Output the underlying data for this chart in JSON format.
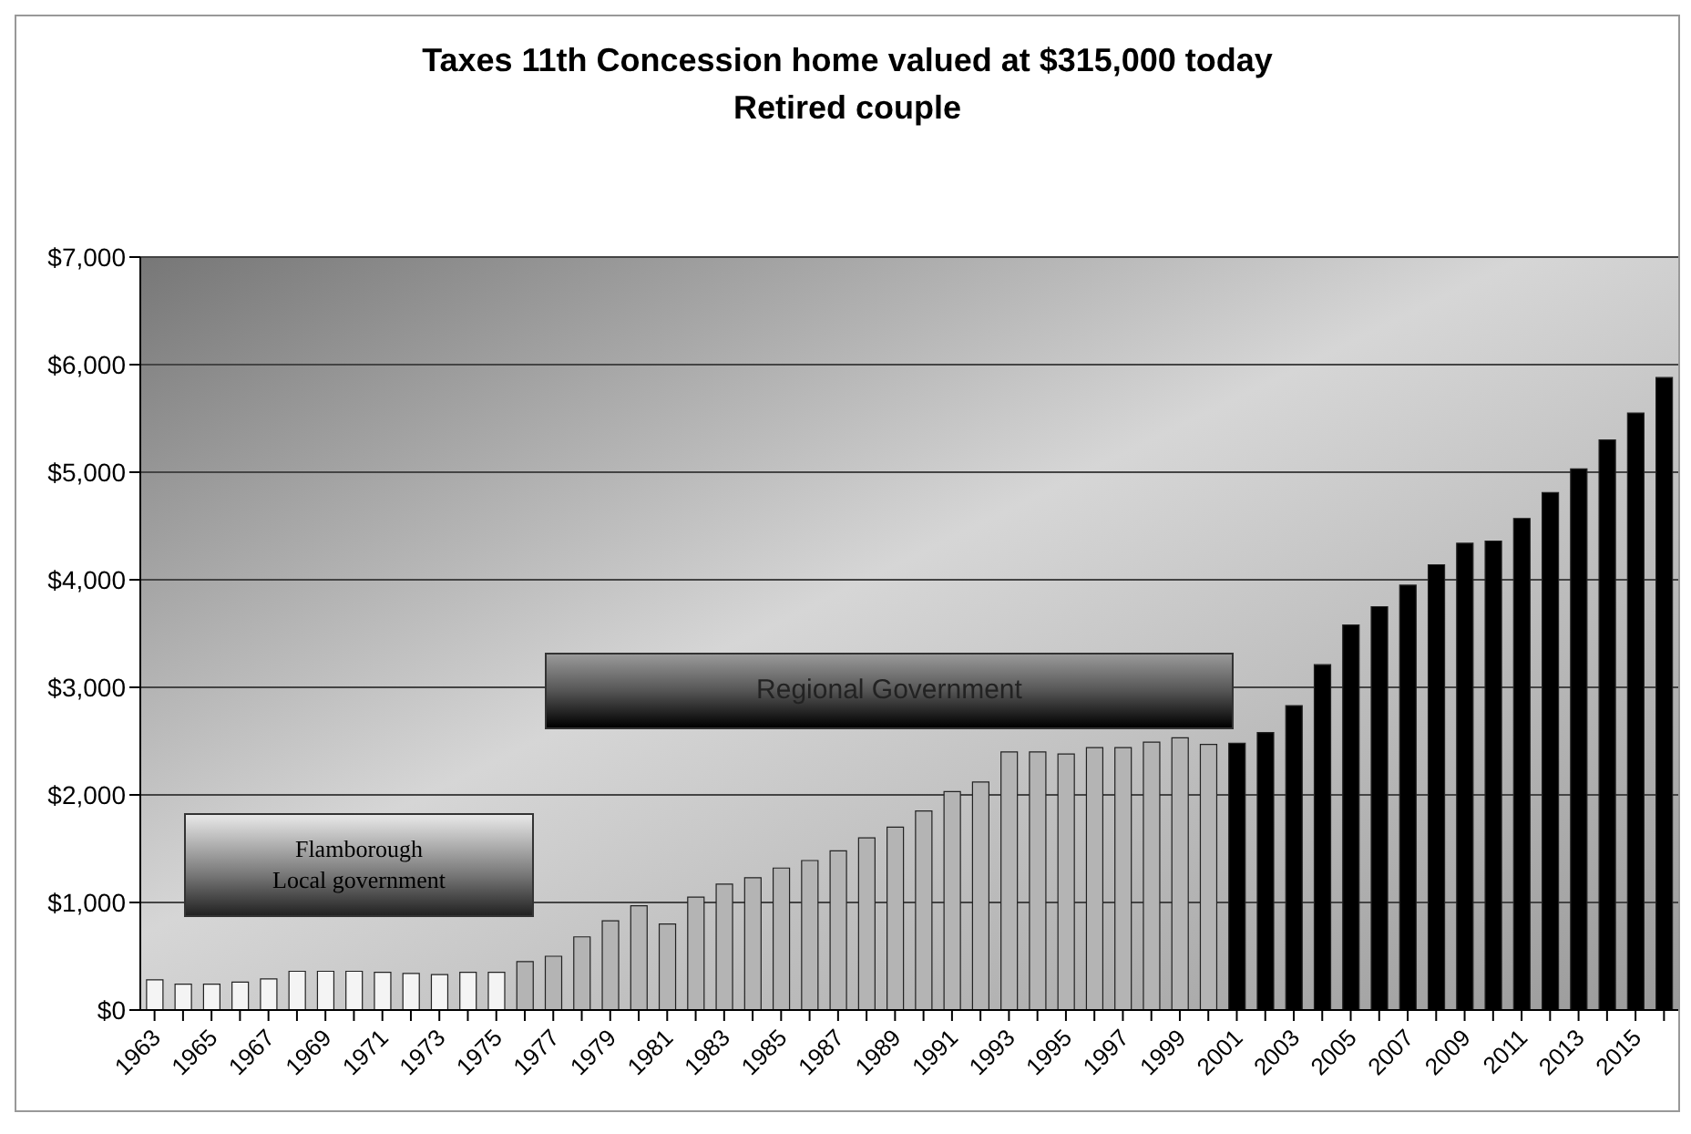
{
  "chart_data": {
    "type": "bar",
    "title": "Taxes 11th Concession home valued at $315,000 today",
    "subtitle": "Retired couple",
    "categories": [
      "1963",
      null,
      "1965",
      null,
      "1967",
      null,
      "1969",
      null,
      "1971",
      null,
      "1973",
      null,
      "1975",
      null,
      "1977",
      null,
      "1979",
      null,
      "1981",
      null,
      "1983",
      null,
      "1985",
      null,
      "1987",
      null,
      "1989",
      null,
      "1991",
      null,
      "1993",
      null,
      "1995",
      null,
      "1997",
      null,
      "1999",
      null,
      "2001",
      null,
      "2003",
      null,
      "2005",
      null,
      "2007",
      null,
      "2009",
      null,
      "2011",
      null,
      "2013",
      null,
      "2015",
      null
    ],
    "values": [
      280,
      240,
      240,
      260,
      290,
      360,
      360,
      360,
      350,
      340,
      330,
      350,
      350,
      450,
      500,
      680,
      830,
      970,
      800,
      1050,
      1170,
      1230,
      1320,
      1390,
      1480,
      1600,
      1700,
      1850,
      2030,
      2120,
      2400,
      2400,
      2380,
      2440,
      2440,
      2490,
      2530,
      2470,
      2480,
      2580,
      2830,
      3210,
      3580,
      3750,
      3950,
      4140,
      4340,
      4360,
      4570,
      4810,
      5030,
      5300,
      5550,
      5880
    ],
    "colors": [
      "#f4f4f4",
      "#f4f4f4",
      "#f4f4f4",
      "#f4f4f4",
      "#f4f4f4",
      "#f4f4f4",
      "#f4f4f4",
      "#f4f4f4",
      "#f4f4f4",
      "#f4f4f4",
      "#f4f4f4",
      "#f4f4f4",
      "#f4f4f4",
      "#b4b4b4",
      "#b4b4b4",
      "#b4b4b4",
      "#b4b4b4",
      "#b4b4b4",
      "#b4b4b4",
      "#b4b4b4",
      "#b4b4b4",
      "#b4b4b4",
      "#b4b4b4",
      "#b4b4b4",
      "#b4b4b4",
      "#b4b4b4",
      "#b4b4b4",
      "#b4b4b4",
      "#b4b4b4",
      "#b4b4b4",
      "#b4b4b4",
      "#b4b4b4",
      "#b4b4b4",
      "#b4b4b4",
      "#b4b4b4",
      "#b4b4b4",
      "#b4b4b4",
      "#b4b4b4",
      "#000000",
      "#000000",
      "#000000",
      "#000000",
      "#000000",
      "#000000",
      "#000000",
      "#000000",
      "#000000",
      "#000000",
      "#000000",
      "#000000",
      "#000000",
      "#000000",
      "#000000",
      "#000000"
    ],
    "ylim": [
      0,
      7000
    ],
    "yticks": [
      {
        "value": 0,
        "label": "$0"
      },
      {
        "value": 1000,
        "label": "$1,000"
      },
      {
        "value": 2000,
        "label": "$2,000"
      },
      {
        "value": 3000,
        "label": "$3,000"
      },
      {
        "value": 4000,
        "label": "$4,000"
      },
      {
        "value": 5000,
        "label": "$5,000"
      },
      {
        "value": 6000,
        "label": "$6,000"
      },
      {
        "value": 7000,
        "label": "$7,000"
      }
    ],
    "grid": "y",
    "annotations": [
      "Flamborough\nLocal government",
      "Regional Government"
    ]
  }
}
